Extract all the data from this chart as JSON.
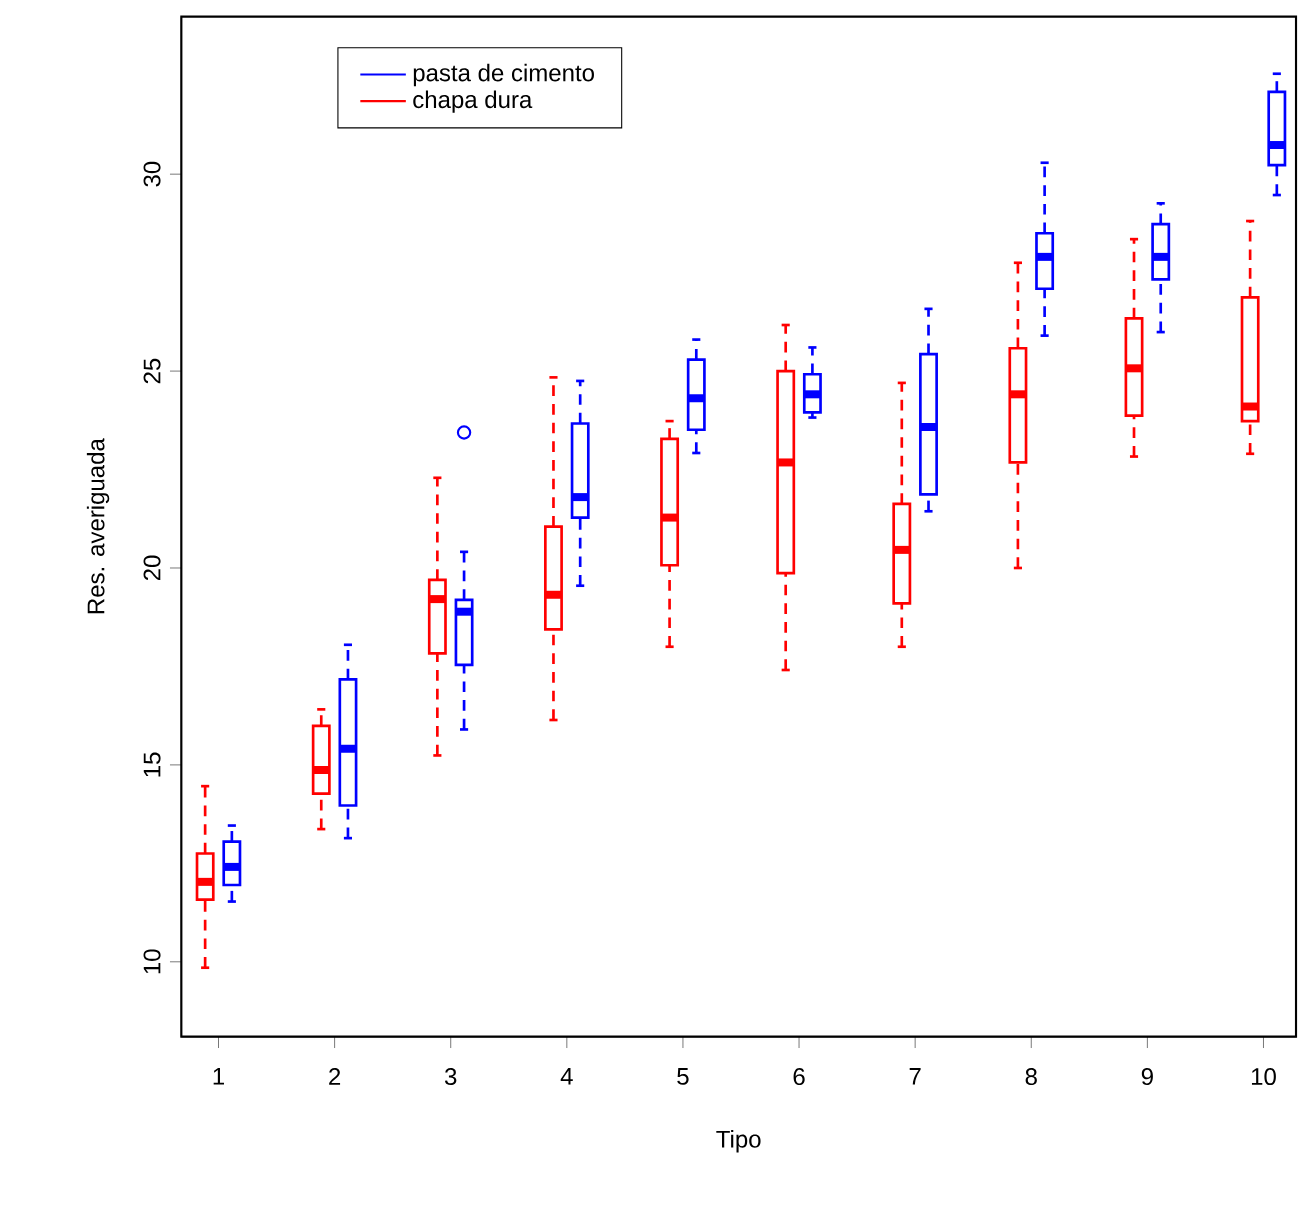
{
  "chart_data": {
    "type": "box",
    "xlabel": "Tipo",
    "ylabel": "Res. averiguada",
    "categories": [
      "1",
      "2",
      "3",
      "4",
      "5",
      "6",
      "7",
      "8",
      "9",
      "10"
    ],
    "ylim": [
      8.1,
      34
    ],
    "yticks": [
      10,
      15,
      20,
      25,
      30
    ],
    "legend": "top left",
    "series": [
      {
        "name": "pasta de cimento",
        "color": "#0000ff",
        "boxes": [
          {
            "low": 11.53,
            "q1": 11.95,
            "median": 12.41,
            "q3": 13.05,
            "high": 13.46
          },
          {
            "low": 13.14,
            "q1": 13.97,
            "median": 15.41,
            "q3": 17.17,
            "high": 18.05
          },
          {
            "low": 15.9,
            "q1": 17.54,
            "median": 18.89,
            "q3": 19.19,
            "high": 20.41,
            "outliers": [
              23.44
            ]
          },
          {
            "low": 19.55,
            "q1": 21.28,
            "median": 21.8,
            "q3": 23.67,
            "high": 24.75
          },
          {
            "low": 22.92,
            "q1": 23.51,
            "median": 24.31,
            "q3": 25.29,
            "high": 25.8
          },
          {
            "low": 23.82,
            "q1": 23.95,
            "median": 24.41,
            "q3": 24.92,
            "high": 25.6
          },
          {
            "low": 21.44,
            "q1": 21.87,
            "median": 23.58,
            "q3": 25.43,
            "high": 26.58
          },
          {
            "low": 25.9,
            "q1": 27.09,
            "median": 27.9,
            "q3": 28.5,
            "high": 30.29
          },
          {
            "low": 25.99,
            "q1": 27.33,
            "median": 27.9,
            "q3": 28.73,
            "high": 29.26
          },
          {
            "low": 29.47,
            "q1": 30.23,
            "median": 30.74,
            "q3": 32.09,
            "high": 32.55
          }
        ]
      },
      {
        "name": "chapa dura",
        "color": "#ff0000",
        "boxes": [
          {
            "low": 9.85,
            "q1": 11.58,
            "median": 12.03,
            "q3": 12.75,
            "high": 14.46
          },
          {
            "low": 13.37,
            "q1": 14.27,
            "median": 14.87,
            "q3": 15.99,
            "high": 16.41
          },
          {
            "low": 15.24,
            "q1": 17.83,
            "median": 19.21,
            "q3": 19.7,
            "high": 22.29
          },
          {
            "low": 16.14,
            "q1": 18.44,
            "median": 19.32,
            "q3": 21.05,
            "high": 24.84
          },
          {
            "low": 18.0,
            "q1": 20.07,
            "median": 21.28,
            "q3": 23.28,
            "high": 23.73
          },
          {
            "low": 17.41,
            "q1": 19.87,
            "median": 22.68,
            "q3": 25.0,
            "high": 26.17
          },
          {
            "low": 18.0,
            "q1": 19.1,
            "median": 20.46,
            "q3": 21.63,
            "high": 24.7
          },
          {
            "low": 20.0,
            "q1": 22.68,
            "median": 24.41,
            "q3": 25.58,
            "high": 27.75
          },
          {
            "low": 22.83,
            "q1": 23.87,
            "median": 25.07,
            "q3": 26.34,
            "high": 28.35
          },
          {
            "low": 22.9,
            "q1": 23.73,
            "median": 24.1,
            "q3": 26.87,
            "high": 28.81
          }
        ]
      }
    ]
  }
}
